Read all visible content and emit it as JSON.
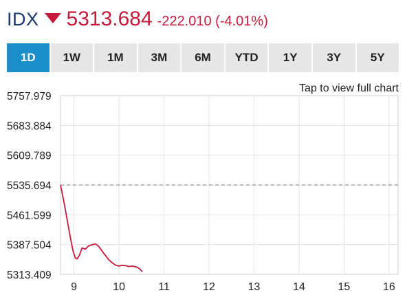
{
  "header": {
    "symbol": "IDX",
    "price": "5313.684",
    "change": "-222.010 (-4.01%)",
    "direction_icon": "down-triangle-icon",
    "color_down": "#c8193c",
    "color_symbol": "#1d3a6e"
  },
  "tabs": [
    {
      "label": "1D",
      "active": true
    },
    {
      "label": "1W",
      "active": false
    },
    {
      "label": "1M",
      "active": false
    },
    {
      "label": "3M",
      "active": false
    },
    {
      "label": "6M",
      "active": false
    },
    {
      "label": "YTD",
      "active": false
    },
    {
      "label": "1Y",
      "active": false
    },
    {
      "label": "3Y",
      "active": false
    },
    {
      "label": "5Y",
      "active": false
    }
  ],
  "accent_color": "#1a8fc9",
  "full_chart_link": "Tap to view full chart",
  "chart_data": {
    "type": "line",
    "title": "",
    "xlabel": "",
    "ylabel": "",
    "xlim": [
      8.7,
      16.2
    ],
    "ylim": [
      5313.409,
      5757.979
    ],
    "x_ticks": [
      9,
      10,
      11,
      12,
      13,
      14,
      15,
      16
    ],
    "x_tick_labels": [
      "9",
      "10",
      "11",
      "12",
      "13",
      "14",
      "15",
      "16"
    ],
    "y_ticks": [
      5757.979,
      5683.884,
      5609.789,
      5535.694,
      5461.599,
      5387.504,
      5313.409
    ],
    "y_tick_labels": [
      "5757.979",
      "5683.884",
      "5609.789",
      "5535.694",
      "5461.599",
      "5387.504",
      "5313.409"
    ],
    "grid": true,
    "reference_line": {
      "y": 5535.694,
      "style": "dashed",
      "color": "#777777"
    },
    "series": [
      {
        "color": "#c8193c",
        "x": [
          8.7,
          8.78,
          8.85,
          8.93,
          8.98,
          9.03,
          9.07,
          9.12,
          9.18,
          9.25,
          9.32,
          9.4,
          9.48,
          9.55,
          9.62,
          9.7,
          9.78,
          9.85,
          9.93,
          10.0,
          10.07,
          10.15,
          10.22,
          10.3,
          10.38,
          10.45,
          10.52
        ],
        "y": [
          5535.7,
          5492,
          5448,
          5398,
          5371,
          5354,
          5352,
          5361,
          5379,
          5376,
          5384,
          5387,
          5389,
          5383,
          5372,
          5360,
          5349,
          5342,
          5336,
          5334,
          5336,
          5335,
          5333,
          5334,
          5332,
          5328,
          5320
        ]
      }
    ]
  }
}
